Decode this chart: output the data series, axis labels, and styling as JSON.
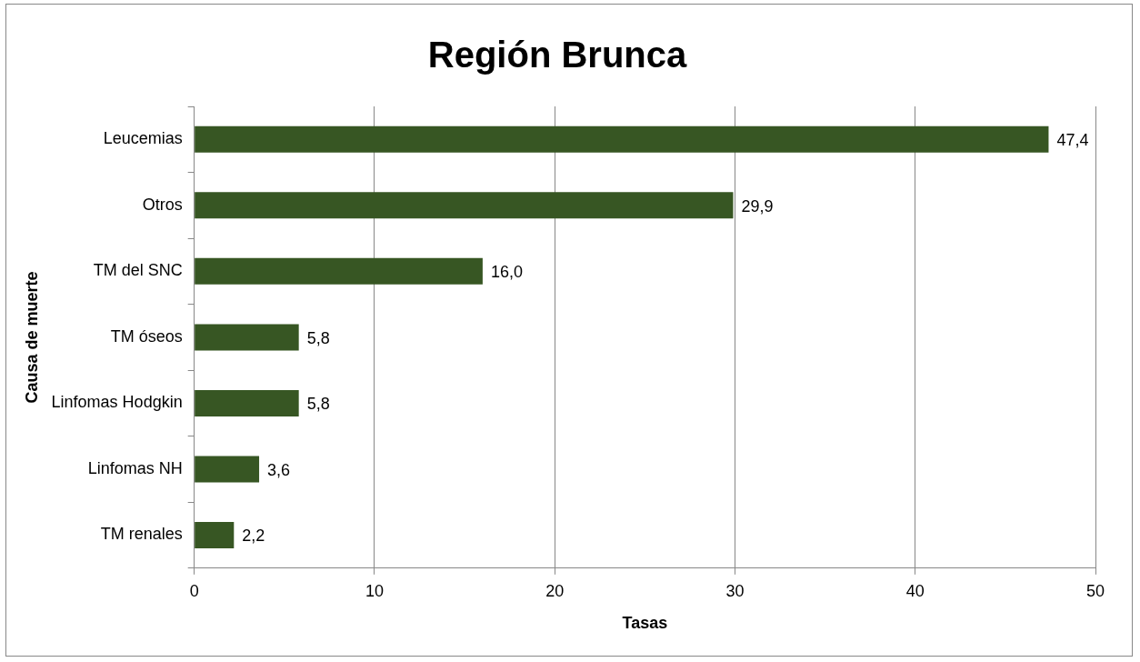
{
  "chart_data": {
    "type": "bar",
    "orientation": "horizontal",
    "title": "Región Brunca",
    "xlabel": "Tasas",
    "ylabel": "Causa de muerte",
    "categories": [
      "Leucemias",
      "Otros",
      "TM del SNC",
      "TM óseos",
      "Linfomas Hodgkin",
      "Linfomas NH",
      "TM renales"
    ],
    "values": [
      47.4,
      29.9,
      16.0,
      5.8,
      5.8,
      3.6,
      2.2
    ],
    "value_labels": [
      "47,4",
      "29,9",
      "16,0",
      "5,8",
      "5,8",
      "3,6",
      "2,2"
    ],
    "color": "#375623",
    "xlim": [
      0,
      50
    ],
    "xticks": [
      0,
      10,
      20,
      30,
      40,
      50
    ],
    "grid": "x",
    "legend": false
  }
}
